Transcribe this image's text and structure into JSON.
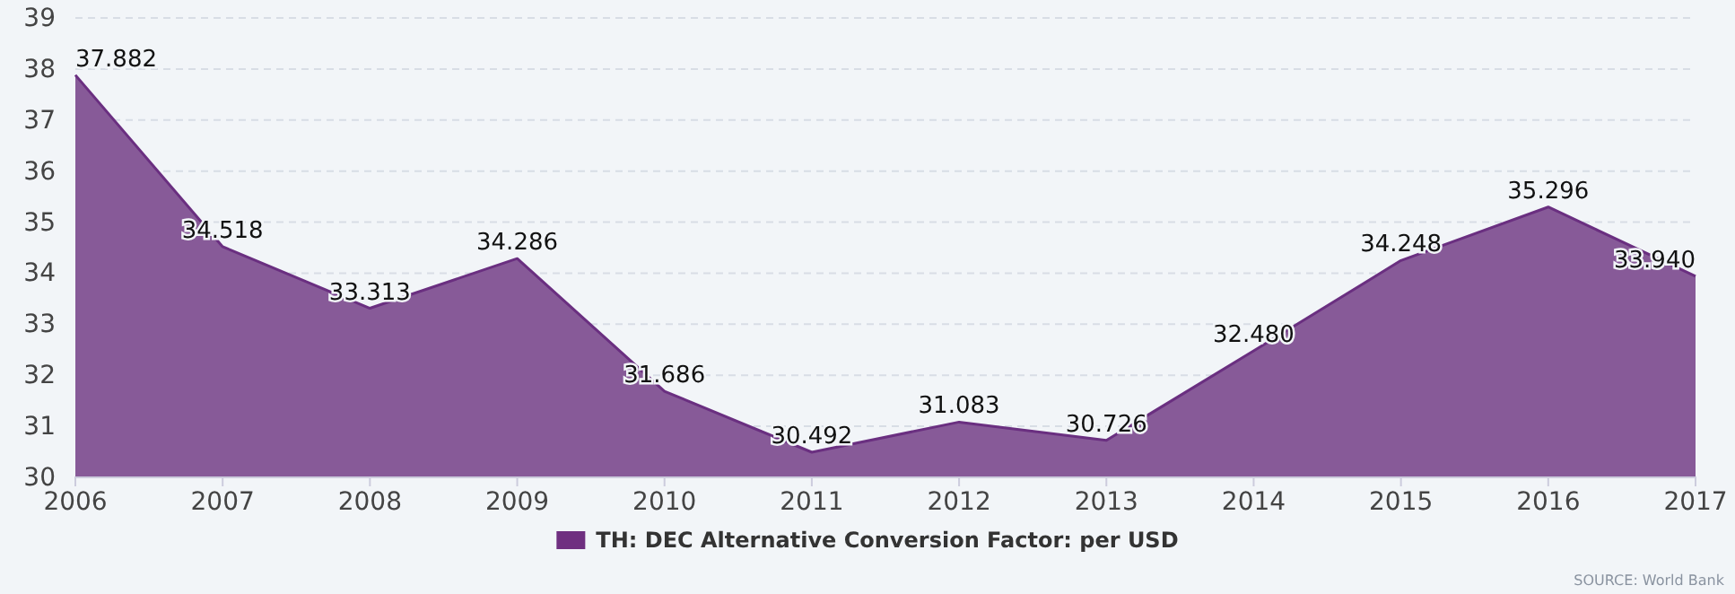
{
  "chart_data": {
    "type": "area",
    "x": [
      2006,
      2007,
      2008,
      2009,
      2010,
      2011,
      2012,
      2013,
      2014,
      2015,
      2016,
      2017
    ],
    "series": [
      {
        "name": "TH: DEC Alternative Conversion Factor: per USD",
        "color": "#875a98",
        "values": [
          37.882,
          34.518,
          33.313,
          34.286,
          31.686,
          30.492,
          31.083,
          30.726,
          32.48,
          34.248,
          35.296,
          33.94
        ],
        "value_labels": [
          "37.882",
          "34.518",
          "33.313",
          "34.286",
          "31.686",
          "30.492",
          "31.083",
          "30.726",
          "32.480",
          "34.248",
          "35.296",
          "33.940"
        ]
      }
    ],
    "xlim": [
      2006,
      2017
    ],
    "xticks": [
      2006,
      2007,
      2008,
      2009,
      2010,
      2011,
      2012,
      2013,
      2014,
      2015,
      2016,
      2017
    ],
    "ylim": [
      30,
      39
    ],
    "yticks": [
      30,
      31,
      32,
      33,
      34,
      35,
      36,
      37,
      38,
      39
    ],
    "grid": "y",
    "legend": "bottom",
    "annotations": [
      "SOURCE: World Bank"
    ]
  }
}
